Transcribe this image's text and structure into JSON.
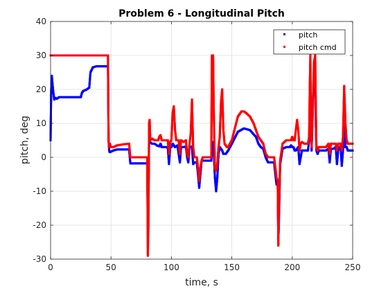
{
  "chart_data": {
    "type": "line",
    "title": "Problem 6 - Longitudinal Pitch",
    "xlabel": "time, s",
    "ylabel": "pitch, deg",
    "xlim": [
      0,
      250
    ],
    "ylim": [
      -30,
      40
    ],
    "xticks": [
      0,
      50,
      100,
      150,
      200,
      250
    ],
    "yticks": [
      -30,
      -20,
      -10,
      0,
      10,
      20,
      30,
      40
    ],
    "xtick_labels": [
      "0",
      "50",
      "100",
      "150",
      "200",
      "250"
    ],
    "ytick_labels": [
      "-30",
      "-20",
      "-10",
      "0",
      "10",
      "20",
      "30",
      "40"
    ],
    "grid": true,
    "legend_position": "top-right",
    "series": [
      {
        "name": "pitch",
        "color": "#0000ff",
        "marker": "dot",
        "points": [
          [
            0,
            5
          ],
          [
            0.5,
            20
          ],
          [
            1,
            24
          ],
          [
            1.5,
            22
          ],
          [
            2,
            20
          ],
          [
            3,
            17
          ],
          [
            4,
            17.5
          ],
          [
            5,
            17.2
          ],
          [
            7,
            17.7
          ],
          [
            10,
            17.7
          ],
          [
            15,
            17.7
          ],
          [
            20,
            17.7
          ],
          [
            25,
            17.7
          ],
          [
            26,
            19
          ],
          [
            27,
            19.5
          ],
          [
            30,
            20
          ],
          [
            32,
            20.5
          ],
          [
            33,
            25
          ],
          [
            35,
            26.5
          ],
          [
            38,
            26.8
          ],
          [
            47,
            26.8
          ],
          [
            47.5,
            27
          ],
          [
            48,
            5
          ],
          [
            48.5,
            2
          ],
          [
            49,
            1.5
          ],
          [
            52,
            2
          ],
          [
            55,
            2.3
          ],
          [
            60,
            2.3
          ],
          [
            65,
            2.3
          ],
          [
            66,
            -1.8
          ],
          [
            70,
            -1.8
          ],
          [
            80,
            -1.8
          ],
          [
            80.5,
            -21
          ],
          [
            81,
            -12
          ],
          [
            81.5,
            4
          ],
          [
            82,
            4.5
          ],
          [
            84,
            4
          ],
          [
            86,
            4
          ],
          [
            88,
            3.5
          ],
          [
            90,
            3.2
          ],
          [
            91,
            4
          ],
          [
            92,
            3
          ],
          [
            94,
            3
          ],
          [
            96,
            3
          ],
          [
            97,
            2.8
          ],
          [
            98,
            -2
          ],
          [
            99,
            3
          ],
          [
            100,
            3
          ],
          [
            101,
            4
          ],
          [
            102,
            3.5
          ],
          [
            103,
            3
          ],
          [
            104,
            3.2
          ],
          [
            105,
            3.5
          ],
          [
            107,
            -1.5
          ],
          [
            108,
            3
          ],
          [
            110,
            3
          ],
          [
            112,
            3.2
          ],
          [
            113,
            0
          ],
          [
            114,
            -1.5
          ],
          [
            115,
            3
          ],
          [
            117,
            3.2
          ],
          [
            118,
            -2
          ],
          [
            119,
            -1.5
          ],
          [
            120,
            -1.5
          ],
          [
            121,
            -1.5
          ],
          [
            122,
            -5
          ],
          [
            123,
            -9
          ],
          [
            124,
            -5
          ],
          [
            125,
            -1
          ],
          [
            126,
            -1
          ],
          [
            128,
            -1
          ],
          [
            130,
            -1
          ],
          [
            132,
            -1
          ],
          [
            133,
            -1
          ],
          [
            134,
            4.5
          ],
          [
            135,
            2
          ],
          [
            136,
            -6
          ],
          [
            137,
            -10
          ],
          [
            138,
            -6
          ],
          [
            139,
            1
          ],
          [
            140,
            3
          ],
          [
            142,
            2
          ],
          [
            143,
            1
          ],
          [
            145,
            1
          ],
          [
            147,
            2
          ],
          [
            150,
            4
          ],
          [
            155,
            7.5
          ],
          [
            160,
            8.5
          ],
          [
            165,
            8
          ],
          [
            170,
            6
          ],
          [
            172,
            4
          ],
          [
            174,
            3
          ],
          [
            176,
            2.5
          ],
          [
            178,
            0
          ],
          [
            180,
            -1.5
          ],
          [
            183,
            -1.5
          ],
          [
            185,
            -1.5
          ],
          [
            186,
            -5
          ],
          [
            187,
            -8
          ],
          [
            188,
            -8
          ],
          [
            188.5,
            -25
          ],
          [
            189,
            -18
          ],
          [
            190,
            -2
          ],
          [
            192,
            2.5
          ],
          [
            195,
            3
          ],
          [
            197,
            3
          ],
          [
            198,
            3
          ],
          [
            199,
            3.5
          ],
          [
            200,
            3
          ],
          [
            201,
            3
          ],
          [
            202,
            2
          ],
          [
            203,
            2
          ],
          [
            204,
            2.5
          ],
          [
            205,
            3
          ],
          [
            206,
            -2
          ],
          [
            207,
            0
          ],
          [
            208,
            2
          ],
          [
            210,
            2
          ],
          [
            212,
            2
          ],
          [
            213,
            2
          ],
          [
            214,
            5
          ],
          [
            214.5,
            15
          ],
          [
            215,
            21
          ],
          [
            215.5,
            10
          ],
          [
            216,
            2
          ],
          [
            218,
            25
          ],
          [
            219,
            27
          ],
          [
            219.5,
            10
          ],
          [
            220,
            2
          ],
          [
            221,
            1
          ],
          [
            222,
            2
          ],
          [
            225,
            2
          ],
          [
            228,
            2
          ],
          [
            230,
            2.5
          ],
          [
            231,
            -1.5
          ],
          [
            232,
            2.5
          ],
          [
            234,
            2.5
          ],
          [
            236,
            3
          ],
          [
            237,
            -2
          ],
          [
            238,
            2
          ],
          [
            239,
            3
          ],
          [
            240,
            3
          ],
          [
            241,
            -2.5
          ],
          [
            242,
            2
          ],
          [
            243,
            10
          ],
          [
            244,
            3
          ],
          [
            245,
            3
          ],
          [
            246,
            2
          ],
          [
            247,
            2
          ],
          [
            248,
            2
          ],
          [
            249,
            2
          ],
          [
            250,
            2
          ]
        ]
      },
      {
        "name": "pitch cmd",
        "color": "#ff0000",
        "marker": "dot",
        "points": [
          [
            0,
            30
          ],
          [
            10,
            30
          ],
          [
            20,
            30
          ],
          [
            30,
            30
          ],
          [
            40,
            30
          ],
          [
            47,
            30
          ],
          [
            47.5,
            30
          ],
          [
            48,
            5
          ],
          [
            48.5,
            3
          ],
          [
            49,
            4
          ],
          [
            50,
            3
          ],
          [
            52,
            3
          ],
          [
            55,
            3.5
          ],
          [
            60,
            3.8
          ],
          [
            65,
            4
          ],
          [
            66,
            0
          ],
          [
            70,
            0
          ],
          [
            75,
            0
          ],
          [
            80,
            0
          ],
          [
            80.5,
            -29
          ],
          [
            81,
            -20
          ],
          [
            81.5,
            10
          ],
          [
            82,
            11
          ],
          [
            82.5,
            5
          ],
          [
            84,
            5.5
          ],
          [
            86,
            5
          ],
          [
            88,
            5
          ],
          [
            89,
            5
          ],
          [
            90,
            6
          ],
          [
            91,
            6.5
          ],
          [
            92,
            5
          ],
          [
            94,
            5
          ],
          [
            96,
            5
          ],
          [
            97,
            5
          ],
          [
            98,
            1
          ],
          [
            99,
            4.5
          ],
          [
            100,
            5
          ],
          [
            101,
            13
          ],
          [
            102,
            15
          ],
          [
            103,
            8
          ],
          [
            104,
            5
          ],
          [
            105,
            5
          ],
          [
            106,
            5
          ],
          [
            107,
            1
          ],
          [
            108,
            5
          ],
          [
            110,
            4.5
          ],
          [
            112,
            5
          ],
          [
            113,
            1
          ],
          [
            114,
            0
          ],
          [
            115,
            4
          ],
          [
            116,
            7
          ],
          [
            117,
            17
          ],
          [
            118,
            3
          ],
          [
            119,
            0
          ],
          [
            120,
            0
          ],
          [
            121,
            0
          ],
          [
            122,
            -3
          ],
          [
            123,
            -7
          ],
          [
            124,
            -3
          ],
          [
            125,
            -1
          ],
          [
            126,
            0
          ],
          [
            128,
            0
          ],
          [
            130,
            0
          ],
          [
            132,
            0
          ],
          [
            133,
            0
          ],
          [
            133.5,
            30
          ],
          [
            134.5,
            30
          ],
          [
            135,
            15
          ],
          [
            135.5,
            5
          ],
          [
            136,
            -3
          ],
          [
            137,
            -4
          ],
          [
            138,
            -2
          ],
          [
            139,
            3
          ],
          [
            140,
            6
          ],
          [
            141,
            16
          ],
          [
            142,
            20
          ],
          [
            143,
            8
          ],
          [
            144,
            4
          ],
          [
            146,
            3
          ],
          [
            147,
            3
          ],
          [
            150,
            5
          ],
          [
            155,
            12
          ],
          [
            158,
            13.5
          ],
          [
            160,
            13.5
          ],
          [
            162,
            13
          ],
          [
            165,
            12
          ],
          [
            168,
            10
          ],
          [
            170,
            8
          ],
          [
            172,
            6
          ],
          [
            174,
            5
          ],
          [
            176,
            4
          ],
          [
            178,
            1
          ],
          [
            180,
            0
          ],
          [
            183,
            0
          ],
          [
            185,
            0
          ],
          [
            186,
            -3
          ],
          [
            187,
            -6
          ],
          [
            188,
            -7
          ],
          [
            188.5,
            -26
          ],
          [
            189,
            -15
          ],
          [
            190,
            -1
          ],
          [
            192,
            4
          ],
          [
            195,
            5
          ],
          [
            197,
            5
          ],
          [
            198,
            5
          ],
          [
            199,
            5
          ],
          [
            200,
            6
          ],
          [
            201,
            5
          ],
          [
            202,
            5
          ],
          [
            203,
            8
          ],
          [
            204,
            11
          ],
          [
            205,
            8
          ],
          [
            206,
            2
          ],
          [
            207,
            4
          ],
          [
            208,
            4.5
          ],
          [
            210,
            4
          ],
          [
            212,
            4
          ],
          [
            213,
            4
          ],
          [
            214,
            6
          ],
          [
            214.5,
            20
          ],
          [
            215,
            30
          ],
          [
            215.5,
            10
          ],
          [
            216,
            3
          ],
          [
            218,
            28
          ],
          [
            219,
            30
          ],
          [
            219.5,
            15
          ],
          [
            220,
            3
          ],
          [
            221,
            2
          ],
          [
            222,
            3
          ],
          [
            225,
            3
          ],
          [
            228,
            3
          ],
          [
            230,
            4
          ],
          [
            231,
            1
          ],
          [
            232,
            4
          ],
          [
            234,
            4
          ],
          [
            236,
            4
          ],
          [
            237,
            2
          ],
          [
            238,
            4
          ],
          [
            239,
            4
          ],
          [
            240,
            4
          ],
          [
            241,
            2
          ],
          [
            242,
            6
          ],
          [
            243,
            21
          ],
          [
            244,
            10
          ],
          [
            245,
            5
          ],
          [
            246,
            4
          ],
          [
            247,
            4
          ],
          [
            248,
            4
          ],
          [
            249,
            4
          ],
          [
            250,
            4
          ]
        ]
      }
    ]
  }
}
